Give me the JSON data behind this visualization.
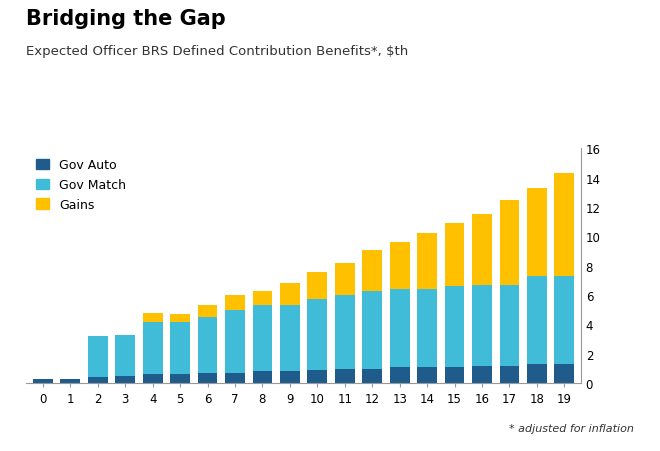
{
  "title": "Bridging the Gap",
  "subtitle": "Expected Officer BRS Defined Contribution Benefits*, $th",
  "footnote": "* adjusted for inflation",
  "categories": [
    0,
    1,
    2,
    3,
    4,
    5,
    6,
    7,
    8,
    9,
    10,
    11,
    12,
    13,
    14,
    15,
    16,
    17,
    18,
    19
  ],
  "gov_auto": [
    0.3,
    0.3,
    0.4,
    0.5,
    0.6,
    0.6,
    0.7,
    0.7,
    0.8,
    0.8,
    0.9,
    1.0,
    1.0,
    1.1,
    1.1,
    1.1,
    1.2,
    1.2,
    1.3,
    1.3
  ],
  "gov_match": [
    0.0,
    0.0,
    2.8,
    2.8,
    3.6,
    3.6,
    3.8,
    4.3,
    4.5,
    4.5,
    4.8,
    5.0,
    5.3,
    5.3,
    5.3,
    5.5,
    5.5,
    5.5,
    6.0,
    6.0
  ],
  "gains": [
    0.0,
    0.0,
    0.0,
    0.0,
    0.6,
    0.5,
    0.8,
    1.0,
    1.0,
    1.5,
    1.9,
    2.2,
    2.8,
    3.2,
    3.8,
    4.3,
    4.8,
    5.8,
    6.0,
    7.0
  ],
  "color_gov_auto": "#1f5c8b",
  "color_gov_match": "#40bcd8",
  "color_gains": "#ffc000",
  "ylim": [
    0,
    16
  ],
  "yticks": [
    0,
    2,
    4,
    6,
    8,
    10,
    12,
    14,
    16
  ],
  "legend_labels": [
    "Gov Auto",
    "Gov Match",
    "Gains"
  ],
  "background_color": "#ffffff",
  "grid_color": "#d0d0d0",
  "title_fontsize": 15,
  "subtitle_fontsize": 9.5,
  "tick_fontsize": 8.5,
  "legend_fontsize": 9
}
